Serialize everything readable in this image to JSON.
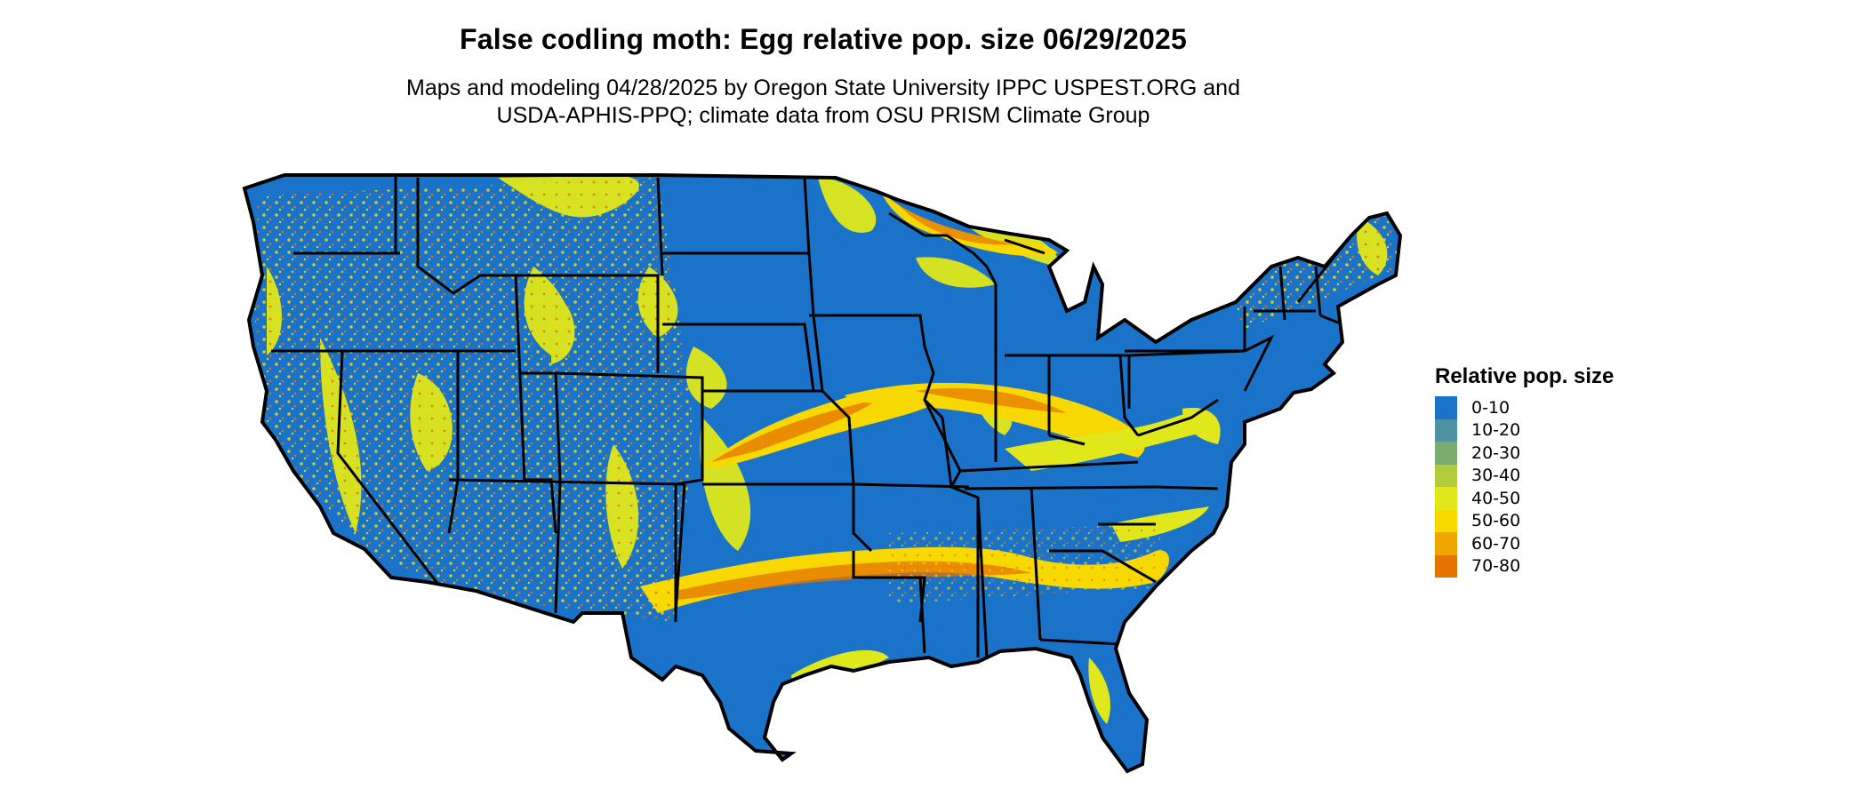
{
  "header": {
    "title": "False codling moth: Egg relative pop. size 06/29/2025",
    "subtitle_line1": "Maps and modeling 04/28/2025 by Oregon State University IPPC USPEST.ORG and",
    "subtitle_line2": "USDA-APHIS-PPQ; climate data from OSU PRISM Climate Group"
  },
  "map": {
    "region": "contiguous United States",
    "base_color": "#1a73c9",
    "boundary_color": "#000000"
  },
  "legend": {
    "title": "Relative pop. size",
    "items": [
      {
        "label": "0-10",
        "color": "#1a73c9"
      },
      {
        "label": "10-20",
        "color": "#4f93a3"
      },
      {
        "label": "20-30",
        "color": "#7aab6f"
      },
      {
        "label": "30-40",
        "color": "#b2cc3e"
      },
      {
        "label": "40-50",
        "color": "#e0e81b"
      },
      {
        "label": "50-60",
        "color": "#f7d800"
      },
      {
        "label": "60-70",
        "color": "#f0a600"
      },
      {
        "label": "70-80",
        "color": "#e57300"
      }
    ]
  }
}
